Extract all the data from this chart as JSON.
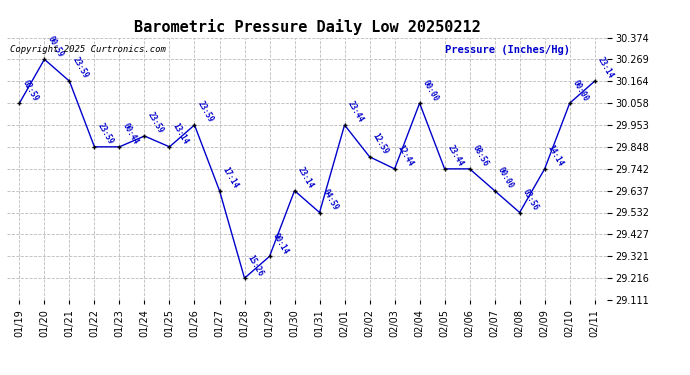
{
  "title": "Barometric Pressure Daily Low 20250212",
  "ylabel": "Pressure (Inches/Hg)",
  "copyright": "Copyright 2025 Curtronics.com",
  "line_color": "#0000cc",
  "marker_color": "#000000",
  "bg_color": "#ffffff",
  "grid_color": "#bbbbbb",
  "dates": [
    "01/19",
    "01/20",
    "01/21",
    "01/22",
    "01/23",
    "01/24",
    "01/25",
    "01/26",
    "01/27",
    "01/28",
    "01/29",
    "01/30",
    "01/31",
    "02/01",
    "02/02",
    "02/03",
    "02/04",
    "02/05",
    "02/06",
    "02/07",
    "02/08",
    "02/09",
    "02/10",
    "02/11"
  ],
  "values": [
    30.058,
    30.269,
    30.164,
    29.848,
    29.848,
    29.9,
    29.848,
    29.953,
    29.637,
    29.216,
    29.321,
    29.637,
    29.532,
    29.953,
    29.8,
    29.742,
    30.058,
    29.742,
    29.742,
    29.637,
    29.532,
    29.742,
    30.058,
    30.164
  ],
  "time_labels": [
    "02:59",
    "00:59",
    "23:59",
    "23:59",
    "00:44",
    "23:59",
    "13:14",
    "23:59",
    "17:14",
    "15:26",
    "00:14",
    "23:14",
    "04:59",
    "23:44",
    "12:59",
    "12:44",
    "00:00",
    "23:44",
    "08:56",
    "00:00",
    "03:56",
    "14:14",
    "00:00",
    "23:14"
  ],
  "ylim_min": 29.111,
  "ylim_max": 30.374,
  "yticks": [
    29.111,
    29.216,
    29.321,
    29.427,
    29.532,
    29.637,
    29.742,
    29.848,
    29.953,
    30.058,
    30.164,
    30.269,
    30.374
  ],
  "figwidth": 6.9,
  "figheight": 3.75,
  "dpi": 100
}
